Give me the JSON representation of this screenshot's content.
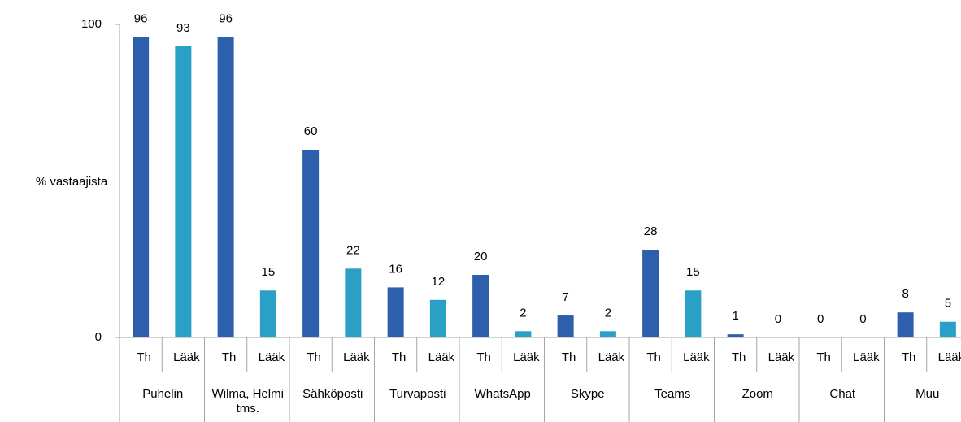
{
  "chart_data": {
    "type": "bar",
    "y_label": "% vastaajista",
    "categories": [
      "Puhelin",
      "Wilma, Helmi tms.",
      "Sähköposti",
      "Turvaposti",
      "WhatsApp",
      "Skype",
      "Teams",
      "Zoom",
      "Chat",
      "Muu"
    ],
    "series": [
      {
        "name": "Th",
        "color": "#2e5fac",
        "values": [
          96,
          96,
          60,
          16,
          20,
          7,
          28,
          1,
          0,
          8
        ]
      },
      {
        "name": "Lääk",
        "color": "#2aa0c6",
        "values": [
          93,
          15,
          22,
          12,
          2,
          2,
          15,
          0,
          0,
          5
        ]
      }
    ],
    "ylim": [
      0,
      100
    ],
    "yticks": [
      0,
      100
    ],
    "grid": false
  }
}
